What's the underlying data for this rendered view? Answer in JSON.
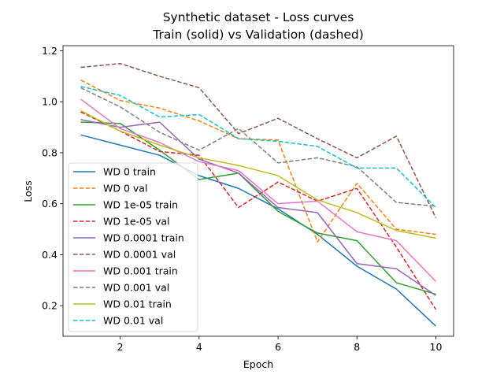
{
  "chart_data": {
    "type": "line",
    "title": "Synthetic dataset - Loss curves",
    "subtitle": "Train (solid) vs Validation (dashed)",
    "xlabel": "Epoch",
    "ylabel": "Loss",
    "xlim": [
      0.55,
      10.45
    ],
    "ylim": [
      0.08,
      1.22
    ],
    "xticks": [
      2,
      4,
      6,
      8,
      10
    ],
    "yticks": [
      0.2,
      0.4,
      0.6,
      0.8,
      1.0,
      1.2
    ],
    "ytick_labels": [
      "0.2",
      "0.4",
      "0.6",
      "0.8",
      "1.0",
      "1.2"
    ],
    "grid": false,
    "legend_position": "lower-left",
    "x": [
      1,
      2,
      3,
      4,
      5,
      6,
      7,
      8,
      9,
      10
    ],
    "series": [
      {
        "name": "WD 0 train",
        "style": "solid",
        "color": "#1f77b4",
        "values": [
          0.87,
          0.83,
          0.79,
          0.71,
          0.66,
          0.58,
          0.48,
          0.355,
          0.265,
          0.12
        ]
      },
      {
        "name": "WD 0 val",
        "style": "dashed",
        "color": "#ff7f0e",
        "values": [
          1.085,
          1.005,
          0.975,
          0.925,
          0.855,
          0.85,
          0.45,
          0.68,
          0.5,
          0.48
        ]
      },
      {
        "name": "WD 1e-05 train",
        "style": "solid",
        "color": "#2ca02c",
        "values": [
          0.92,
          0.915,
          0.81,
          0.695,
          0.72,
          0.57,
          0.485,
          0.455,
          0.29,
          0.245
        ]
      },
      {
        "name": "WD 1e-05 val",
        "style": "dashed",
        "color": "#d62728",
        "values": [
          0.96,
          0.885,
          0.805,
          0.79,
          0.585,
          0.685,
          0.61,
          0.66,
          0.43,
          0.185
        ]
      },
      {
        "name": "WD 0.0001 train",
        "style": "solid",
        "color": "#9467bd",
        "values": [
          0.93,
          0.9,
          0.92,
          0.775,
          0.72,
          0.585,
          0.565,
          0.365,
          0.345,
          0.24
        ]
      },
      {
        "name": "WD 0.0001 val",
        "style": "dashed",
        "color": "#8c564b",
        "values": [
          1.135,
          1.15,
          1.1,
          1.055,
          0.875,
          0.935,
          0.855,
          0.78,
          0.865,
          0.545
        ]
      },
      {
        "name": "WD 0.001 train",
        "style": "solid",
        "color": "#e377c2",
        "values": [
          1.01,
          0.895,
          0.84,
          0.765,
          0.73,
          0.6,
          0.61,
          0.49,
          0.455,
          0.295
        ]
      },
      {
        "name": "WD 0.001 val",
        "style": "dashed",
        "color": "#7f7f7f",
        "values": [
          1.055,
          0.98,
          0.88,
          0.81,
          0.895,
          0.76,
          0.78,
          0.745,
          0.605,
          0.59
        ]
      },
      {
        "name": "WD 0.01 train",
        "style": "solid",
        "color": "#bcbd22",
        "values": [
          0.965,
          0.885,
          0.83,
          0.78,
          0.75,
          0.71,
          0.615,
          0.565,
          0.495,
          0.465
        ]
      },
      {
        "name": "WD 0.01 val",
        "style": "dashed",
        "color": "#17becf",
        "values": [
          1.06,
          1.025,
          0.94,
          0.95,
          0.855,
          0.845,
          0.825,
          0.74,
          0.74,
          0.585
        ]
      }
    ]
  }
}
